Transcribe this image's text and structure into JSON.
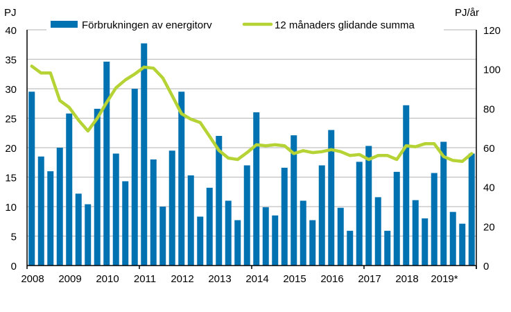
{
  "chart_data": {
    "type": "bar+line",
    "left_axis_label": "PJ",
    "right_axis_label": "PJ/år",
    "left_ylim": [
      0,
      40
    ],
    "right_ylim": [
      0,
      120
    ],
    "left_ticks": [
      "0",
      "5",
      "10",
      "15",
      "20",
      "25",
      "30",
      "35",
      "40"
    ],
    "right_ticks": [
      "0",
      "20",
      "40",
      "60",
      "80",
      "100",
      "120"
    ],
    "year_labels": [
      "2008",
      "2009",
      "2010",
      "2011",
      "2012",
      "2013",
      "2014",
      "2015",
      "2016",
      "2017",
      "2018",
      "2019*"
    ],
    "grid": true,
    "legend_placement": "top",
    "colors": {
      "bars": "#0072b2",
      "line": "#b5d334",
      "grid": "#c0c0c0"
    },
    "series": [
      {
        "name": "Förbrukningen av energitorv",
        "type": "bar",
        "axis": "left",
        "values": [
          29.5,
          18.5,
          16,
          20,
          25.8,
          12.2,
          10.4,
          26.6,
          34.6,
          19,
          14.3,
          30,
          37.7,
          18,
          10,
          19.5,
          29.5,
          15.3,
          8.3,
          13.2,
          22,
          11,
          7.7,
          17,
          26,
          9.9,
          8.5,
          16.6,
          22.1,
          11,
          7.7,
          17,
          23,
          9.8,
          5.9,
          17.6,
          20.3,
          11.6,
          5.9,
          15.9,
          27.2,
          11.1,
          8,
          15.7,
          21,
          9.1,
          7.1,
          19
        ]
      },
      {
        "name": "12 månaders glidande summa",
        "type": "line",
        "axis": "right",
        "values": [
          101.5,
          98,
          98,
          84,
          80.5,
          74,
          68.5,
          75,
          83,
          90.5,
          94.5,
          97.5,
          101,
          100.5,
          95.5,
          86.5,
          77.3,
          74.5,
          72.8,
          65.7,
          58.6,
          54.7,
          54,
          57.5,
          61.5,
          61,
          61.5,
          61,
          57,
          58.5,
          57.5,
          58,
          59,
          58,
          56,
          56.5,
          54,
          56,
          56,
          54,
          61,
          60.5,
          62,
          62,
          55.5,
          53.5,
          53,
          57
        ]
      }
    ]
  }
}
